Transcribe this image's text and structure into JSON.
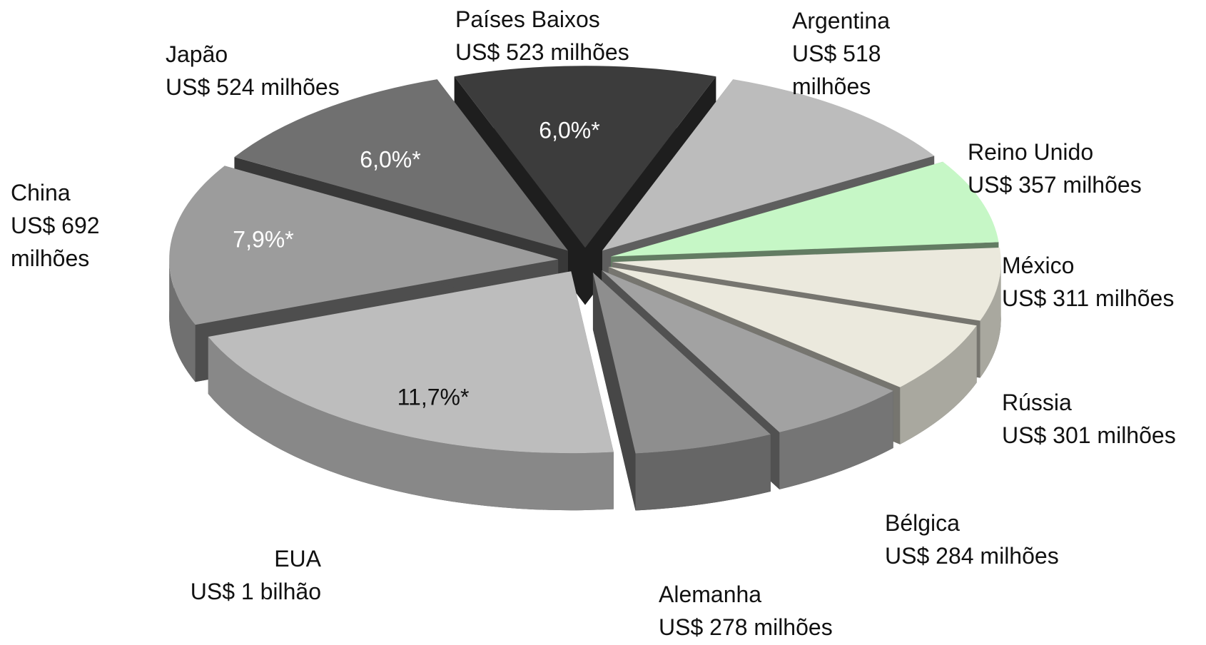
{
  "chart_data": {
    "type": "pie",
    "categories": [
      "Países Baixos",
      "Argentina",
      "Reino Unido",
      "México",
      "Rússia",
      "Bélgica",
      "Alemanha",
      "EUA",
      "China",
      "Japão"
    ],
    "values": [
      523,
      518,
      357,
      311,
      301,
      284,
      278,
      1000,
      692,
      524
    ],
    "value_labels": [
      "US$ 523 milhões",
      "US$ 518 milhões",
      "US$ 357 milhões",
      "US$ 311 milhões",
      "US$ 301 milhões",
      "US$ 284 milhões",
      "US$ 278 milhões",
      "US$ 1 bilhão",
      "US$ 692 milhões",
      "US$ 524 milhões"
    ],
    "percent_values": [
      6.0,
      null,
      null,
      null,
      null,
      null,
      null,
      11.7,
      7.9,
      6.0
    ],
    "percent_labels": [
      "6,0%*",
      null,
      null,
      null,
      null,
      null,
      null,
      "11,7%*",
      "7,9%*",
      "6,0%*"
    ],
    "colors": [
      "#3c3c3c",
      "#bcbcbc",
      "#c6f7c6",
      "#ebe9dd",
      "#ebe9dd",
      "#a2a2a2",
      "#8e8e8e",
      "#bdbdbd",
      "#9c9c9c",
      "#707070"
    ]
  }
}
